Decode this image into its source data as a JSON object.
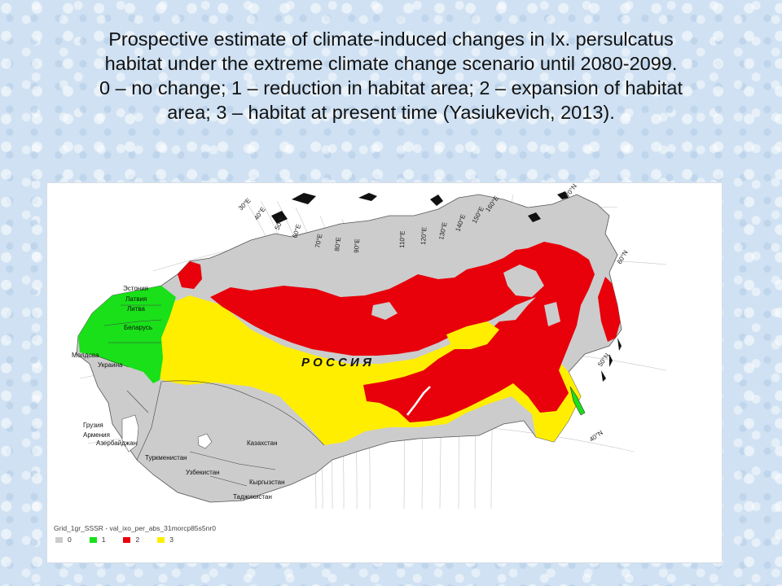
{
  "caption": {
    "line1": "Prospective estimate of climate-induced changes in Ix. persulcatus",
    "line2": "habitat under the extreme climate change scenario until  2080-2099.",
    "line3": "0 – no change; 1 – reduction in habitat area; 2 – expansion of habitat",
    "line4": "area; 3 – habitat  at present time (Yasiukevich, 2013)."
  },
  "map": {
    "country_label": "Р О С С И Я",
    "region_labels": {
      "estonia": "Эстония",
      "latvia": "Латвия",
      "lithuania": "Литва",
      "belarus": "Беларусь",
      "moldova": "Молдова",
      "ukraine": "Украина",
      "georgia": "Грузия",
      "armenia": "Армения",
      "azerbaijan": "Азербайджан",
      "turkmenistan": "Туркменистан",
      "uzbekistan": "Узбекистан",
      "kazakhstan": "Казахстан",
      "kyrgyzstan": "Кыргызстан",
      "tajikistan": "Таджикистан"
    },
    "meridians": [
      "30°E",
      "40°E",
      "50°E",
      "60°E",
      "70°E",
      "80°E",
      "90°E",
      "110°E",
      "120°E",
      "130°E",
      "140°E",
      "150°E",
      "160°E"
    ],
    "parallels": [
      "70°N",
      "60°N",
      "50°N",
      "40°N"
    ],
    "legend": {
      "title": "Grid_1gr_SSSR - val_ixo_per_abs_31morcp85s5nr0",
      "items": [
        {
          "label": "0",
          "color": "#cccccc"
        },
        {
          "label": "1",
          "color": "#19e019"
        },
        {
          "label": "2",
          "color": "#e8000b"
        },
        {
          "label": "3",
          "color": "#ffee00"
        }
      ]
    }
  }
}
